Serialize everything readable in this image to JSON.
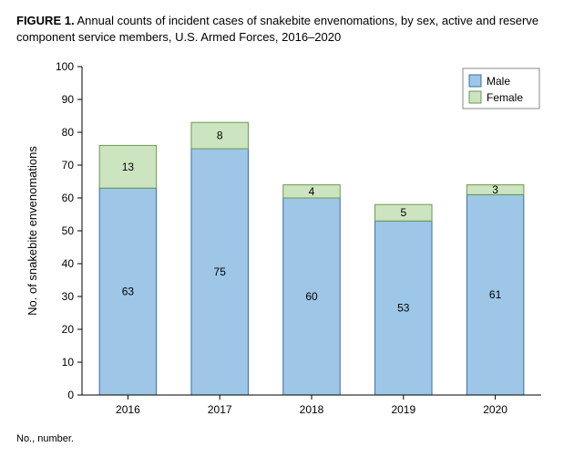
{
  "caption": {
    "figure_label": "FIGURE 1.",
    "text": "Annual counts of incident cases of snakebite envenomations, by sex, active and reserve component service members, U.S. Armed Forces, 2016–2020"
  },
  "footnote": "No., number.",
  "chart": {
    "type": "stacked-bar",
    "y_axis": {
      "title": "No. of snakebite envenomations",
      "min": 0,
      "max": 100,
      "tick_step": 10,
      "tick_color": "#000000",
      "title_fontsize": 13,
      "tick_fontsize": 12
    },
    "x_axis": {
      "categories": [
        "2016",
        "2017",
        "2018",
        "2019",
        "2020"
      ],
      "tick_fontsize": 12
    },
    "series": [
      {
        "name": "Male",
        "color_fill": "#9ec6e6",
        "color_stroke": "#3b6fa3",
        "values": [
          63,
          75,
          60,
          53,
          61
        ]
      },
      {
        "name": "Female",
        "color_fill": "#cde4c0",
        "color_stroke": "#6a9a4f",
        "values": [
          13,
          8,
          4,
          5,
          3
        ]
      }
    ],
    "legend": {
      "box_stroke": "#888888",
      "box_fill": "#ffffff",
      "fontsize": 12
    },
    "background_color": "#ffffff",
    "axis_color": "#000000",
    "label_fontsize": 12,
    "bar_width_ratio": 0.62
  }
}
